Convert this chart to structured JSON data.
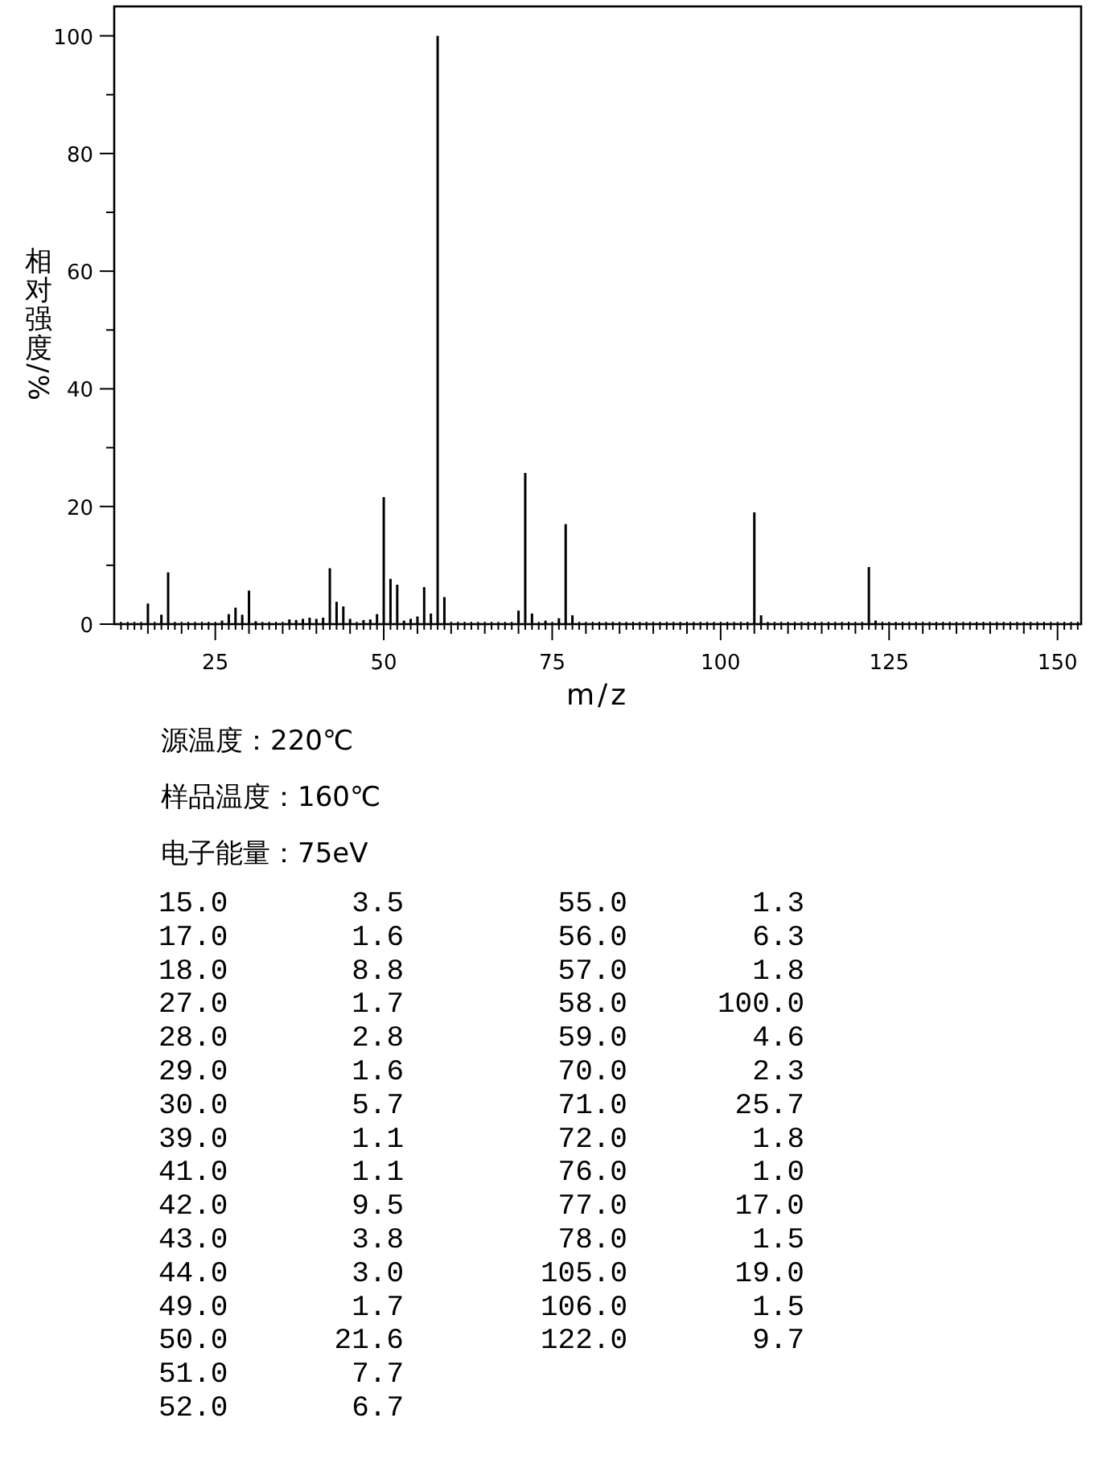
{
  "chart_data": [
    {
      "type": "bar",
      "xlabel": "m/z",
      "ylabel": "相对强度/%",
      "color": "#000000",
      "x": [
        15,
        17,
        18,
        26,
        27,
        28,
        29,
        30,
        31,
        36,
        37,
        38,
        39,
        40,
        41,
        42,
        43,
        44,
        45,
        47,
        48,
        49,
        50,
        51,
        52,
        53,
        54,
        55,
        56,
        57,
        58,
        59,
        70,
        71,
        72,
        74,
        76,
        77,
        78,
        105,
        106,
        122,
        123
      ],
      "values": [
        3.5,
        1.6,
        8.8,
        0.6,
        1.7,
        2.8,
        1.6,
        5.7,
        0.5,
        0.8,
        0.7,
        0.9,
        1.1,
        0.9,
        1.1,
        9.5,
        3.8,
        3.0,
        0.9,
        0.7,
        0.8,
        1.7,
        21.6,
        7.7,
        6.7,
        0.6,
        0.9,
        1.3,
        6.3,
        1.8,
        100.0,
        4.6,
        2.3,
        25.7,
        1.8,
        0.6,
        1.0,
        17.0,
        1.5,
        19.0,
        1.5,
        9.7,
        0.6
      ],
      "xlim": [
        10,
        153.5
      ],
      "ylim": [
        0,
        105
      ],
      "xticks": [
        {
          "value": 11,
          "label": null
        },
        {
          "value": 12,
          "label": null
        },
        {
          "value": 13,
          "label": null
        },
        {
          "value": 14,
          "label": null
        },
        {
          "value": 15,
          "label": null
        },
        {
          "value": 16,
          "label": null
        },
        {
          "value": 17,
          "label": null
        },
        {
          "value": 18,
          "label": null
        },
        {
          "value": 19,
          "label": null
        },
        {
          "value": 20,
          "label": null
        },
        {
          "value": 21,
          "label": null
        },
        {
          "value": 22,
          "label": null
        },
        {
          "value": 23,
          "label": null
        },
        {
          "value": 24,
          "label": null
        },
        25,
        {
          "value": 26,
          "label": null
        },
        {
          "value": 27,
          "label": null
        },
        {
          "value": 28,
          "label": null
        },
        {
          "value": 29,
          "label": null
        },
        {
          "value": 30,
          "label": null
        },
        {
          "value": 31,
          "label": null
        },
        {
          "value": 32,
          "label": null
        },
        {
          "value": 33,
          "label": null
        },
        {
          "value": 34,
          "label": null
        },
        {
          "value": 35,
          "label": null
        },
        {
          "value": 36,
          "label": null
        },
        {
          "value": 37,
          "label": null
        },
        {
          "value": 38,
          "label": null
        },
        {
          "value": 39,
          "label": null
        },
        {
          "value": 40,
          "label": null
        },
        {
          "value": 41,
          "label": null
        },
        {
          "value": 42,
          "label": null
        },
        {
          "value": 43,
          "label": null
        },
        {
          "value": 44,
          "label": null
        },
        {
          "value": 45,
          "label": null
        },
        {
          "value": 46,
          "label": null
        },
        {
          "value": 47,
          "label": null
        },
        {
          "value": 48,
          "label": null
        },
        {
          "value": 49,
          "label": null
        },
        50,
        {
          "value": 51,
          "label": null
        },
        {
          "value": 52,
          "label": null
        },
        {
          "value": 53,
          "label": null
        },
        {
          "value": 54,
          "label": null
        },
        {
          "value": 55,
          "label": null
        },
        {
          "value": 56,
          "label": null
        },
        {
          "value": 57,
          "label": null
        },
        {
          "value": 58,
          "label": null
        },
        {
          "value": 59,
          "label": null
        },
        {
          "value": 60,
          "label": null
        },
        {
          "value": 61,
          "label": null
        },
        {
          "value": 62,
          "label": null
        },
        {
          "value": 63,
          "label": null
        },
        {
          "value": 64,
          "label": null
        },
        {
          "value": 65,
          "label": null
        },
        {
          "value": 66,
          "label": null
        },
        {
          "value": 67,
          "label": null
        },
        {
          "value": 68,
          "label": null
        },
        {
          "value": 69,
          "label": null
        },
        {
          "value": 70,
          "label": null
        },
        {
          "value": 71,
          "label": null
        },
        {
          "value": 72,
          "label": null
        },
        {
          "value": 73,
          "label": null
        },
        {
          "value": 74,
          "label": null
        },
        75,
        {
          "value": 76,
          "label": null
        },
        {
          "value": 77,
          "label": null
        },
        {
          "value": 78,
          "label": null
        },
        {
          "value": 79,
          "label": null
        },
        {
          "value": 80,
          "label": null
        },
        {
          "value": 81,
          "label": null
        },
        {
          "value": 82,
          "label": null
        },
        {
          "value": 83,
          "label": null
        },
        {
          "value": 84,
          "label": null
        },
        {
          "value": 85,
          "label": null
        },
        {
          "value": 86,
          "label": null
        },
        {
          "value": 87,
          "label": null
        },
        {
          "value": 88,
          "label": null
        },
        {
          "value": 89,
          "label": null
        },
        {
          "value": 90,
          "label": null
        },
        {
          "value": 91,
          "label": null
        },
        {
          "value": 92,
          "label": null
        },
        {
          "value": 93,
          "label": null
        },
        {
          "value": 94,
          "label": null
        },
        {
          "value": 95,
          "label": null
        },
        {
          "value": 96,
          "label": null
        },
        {
          "value": 97,
          "label": null
        },
        {
          "value": 98,
          "label": null
        },
        {
          "value": 99,
          "label": null
        },
        100,
        {
          "value": 101,
          "label": null
        },
        {
          "value": 102,
          "label": null
        },
        {
          "value": 103,
          "label": null
        },
        {
          "value": 104,
          "label": null
        },
        {
          "value": 105,
          "label": null
        },
        {
          "value": 106,
          "label": null
        },
        {
          "value": 107,
          "label": null
        },
        {
          "value": 108,
          "label": null
        },
        {
          "value": 109,
          "label": null
        },
        {
          "value": 110,
          "label": null
        },
        {
          "value": 111,
          "label": null
        },
        {
          "value": 112,
          "label": null
        },
        {
          "value": 113,
          "label": null
        },
        {
          "value": 114,
          "label": null
        },
        {
          "value": 115,
          "label": null
        },
        {
          "value": 116,
          "label": null
        },
        {
          "value": 117,
          "label": null
        },
        {
          "value": 118,
          "label": null
        },
        {
          "value": 119,
          "label": null
        },
        {
          "value": 120,
          "label": null
        },
        {
          "value": 121,
          "label": null
        },
        {
          "value": 122,
          "label": null
        },
        {
          "value": 123,
          "label": null
        },
        {
          "value": 124,
          "label": null
        },
        125,
        {
          "value": 126,
          "label": null
        },
        {
          "value": 127,
          "label": null
        },
        {
          "value": 128,
          "label": null
        },
        {
          "value": 129,
          "label": null
        },
        {
          "value": 130,
          "label": null
        },
        {
          "value": 131,
          "label": null
        },
        {
          "value": 132,
          "label": null
        },
        {
          "value": 133,
          "label": null
        },
        {
          "value": 134,
          "label": null
        },
        {
          "value": 135,
          "label": null
        },
        {
          "value": 136,
          "label": null
        },
        {
          "value": 137,
          "label": null
        },
        {
          "value": 138,
          "label": null
        },
        {
          "value": 139,
          "label": null
        },
        {
          "value": 140,
          "label": null
        },
        {
          "value": 141,
          "label": null
        },
        {
          "value": 142,
          "label": null
        },
        {
          "value": 143,
          "label": null
        },
        {
          "value": 144,
          "label": null
        },
        {
          "value": 145,
          "label": null
        },
        {
          "value": 146,
          "label": null
        },
        {
          "value": 147,
          "label": null
        },
        {
          "value": 148,
          "label": null
        },
        {
          "value": 149,
          "label": null
        },
        150,
        {
          "value": 151,
          "label": null
        },
        {
          "value": 152,
          "label": null
        },
        {
          "value": 153,
          "label": null
        }
      ],
      "yticks": [
        0,
        {
          "value": 10,
          "label": null
        },
        20,
        {
          "value": 30,
          "label": null
        },
        40,
        {
          "value": 50,
          "label": null
        },
        60,
        {
          "value": 70,
          "label": null
        },
        80,
        {
          "value": 90,
          "label": null
        },
        100
      ],
      "annotations": [
        "源温度：220℃",
        "样品温度：160℃",
        "电子能量：75eV"
      ]
    },
    {
      "type": "other",
      "annotations": [
        "15.0",
        "3.5",
        "17.0",
        "1.6",
        "18.0",
        "8.8",
        "27.0",
        "1.7",
        "28.0",
        "2.8",
        "29.0",
        "1.6",
        "30.0",
        "5.7",
        "39.0",
        "1.1",
        "41.0",
        "1.1",
        "42.0",
        "9.5",
        "43.0",
        "3.8",
        "44.0",
        "3.0",
        "49.0",
        "1.7",
        "50.0",
        "21.6",
        "51.0",
        "7.7",
        "52.0",
        "6.7",
        "55.0",
        "1.3",
        "56.0",
        "6.3",
        "57.0",
        "1.8",
        "58.0",
        "100.0",
        "59.0",
        "4.6",
        "70.0",
        "2.3",
        "71.0",
        "25.7",
        "72.0",
        "1.8",
        "76.0",
        "1.0",
        "77.0",
        "17.0",
        "78.0",
        "1.5",
        "105.0",
        "19.0",
        "106.0",
        "1.5",
        "122.0",
        "9.7"
      ]
    }
  ]
}
